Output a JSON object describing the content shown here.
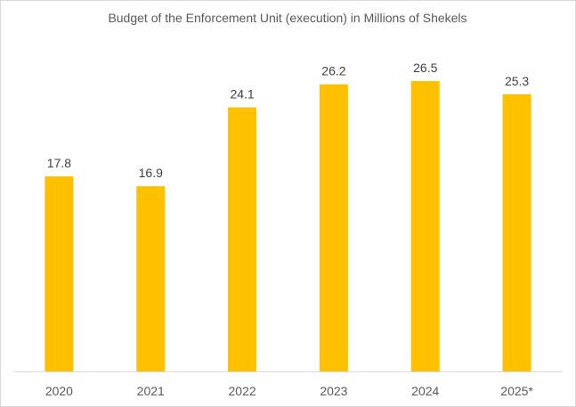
{
  "chart_data": {
    "type": "bar",
    "title": "Budget of the Enforcement Unit (execution) in Millions of Shekels",
    "xlabel": "",
    "ylabel": "",
    "categories": [
      "2020",
      "2021",
      "2022",
      "2023",
      "2024",
      "2025*"
    ],
    "values": [
      17.8,
      16.9,
      24.1,
      26.2,
      26.5,
      25.3
    ],
    "data_labels": [
      "17.8",
      "16.9",
      "24.1",
      "26.2",
      "26.5",
      "25.3"
    ],
    "ylim": [
      0,
      28
    ],
    "grid": false,
    "legend": "none",
    "bar_color": "#FFC000",
    "axis_color": "#D9D9D9"
  }
}
